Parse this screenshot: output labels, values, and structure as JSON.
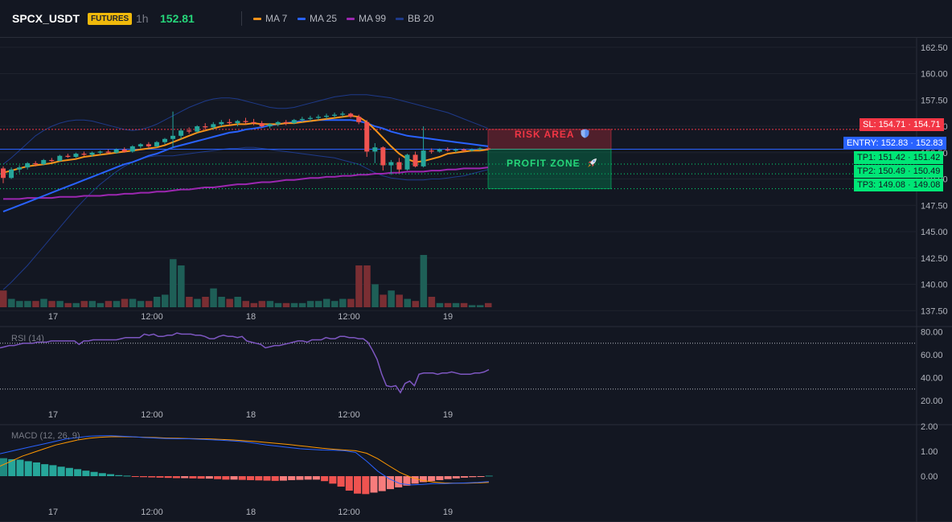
{
  "header": {
    "symbol": "SPCX_USDT",
    "badge": "FUTURES",
    "interval": "1h",
    "price": "152.81",
    "legend": [
      {
        "label": "MA 7",
        "color": "#f7931a"
      },
      {
        "label": "MA 25",
        "color": "#2962ff"
      },
      {
        "label": "MA 99",
        "color": "#9c27b0"
      },
      {
        "label": "BB 20",
        "color": "#1e3a8a"
      }
    ]
  },
  "price_pane": {
    "ticks": [
      "162.50",
      "160.00",
      "157.50",
      "155.00",
      "152.50",
      "150.00",
      "147.50",
      "145.00",
      "142.50",
      "140.00",
      "137.50"
    ],
    "risk_label": "RISK AREA",
    "profit_label": "PROFIT ZONE",
    "risk_icon": "shield-icon",
    "profit_icon": "rocket-icon",
    "tags": {
      "sl": "SL: 154.71 · 154.71",
      "entry": "ENTRY: 152.83 · 152.83",
      "tp1": "TP1: 151.42 · 151.42",
      "tp2": "TP2: 150.49 · 150.49",
      "tp3": "TP3: 149.08 · 149.08"
    },
    "colors": {
      "up": "#26a69a",
      "down": "#ef5350",
      "sl": "#f23645",
      "entry": "#2962ff",
      "tp": "#00e676"
    }
  },
  "time_axis": [
    "17",
    "12:00",
    "18",
    "12:00",
    "19"
  ],
  "rsi_pane": {
    "label": "RSI (14)",
    "ticks": [
      "80.00",
      "60.00",
      "40.00",
      "20.00"
    ],
    "color": "#7e57c2"
  },
  "macd_pane": {
    "label": "MACD (12, 26, 9)",
    "ticks": [
      "2.00",
      "1.00",
      "0.00"
    ]
  },
  "chart_data": {
    "type": "candlestick",
    "price": {
      "ylim": [
        136.4,
        163.6
      ],
      "candles": [
        [
          151.0,
          151.2,
          149.6,
          150.1
        ],
        [
          150.1,
          151.1,
          150.0,
          150.9
        ],
        [
          150.9,
          151.3,
          150.6,
          151.1
        ],
        [
          151.1,
          151.6,
          150.9,
          151.5
        ],
        [
          151.5,
          151.7,
          151.2,
          151.4
        ],
        [
          151.4,
          151.9,
          151.3,
          151.8
        ],
        [
          151.8,
          152.0,
          151.6,
          151.7
        ],
        [
          151.7,
          152.3,
          151.7,
          152.2
        ],
        [
          152.2,
          152.4,
          152.0,
          152.1
        ],
        [
          152.1,
          152.5,
          152.0,
          152.4
        ],
        [
          152.4,
          152.6,
          152.2,
          152.3
        ],
        [
          152.3,
          152.6,
          152.1,
          152.5
        ],
        [
          152.5,
          152.7,
          152.3,
          152.6
        ],
        [
          152.6,
          152.8,
          152.4,
          152.5
        ],
        [
          152.5,
          152.9,
          152.4,
          152.8
        ],
        [
          152.8,
          153.0,
          152.5,
          152.6
        ],
        [
          152.6,
          153.2,
          152.5,
          153.1
        ],
        [
          153.1,
          153.4,
          152.9,
          153.3
        ],
        [
          153.3,
          153.5,
          153.0,
          153.1
        ],
        [
          153.1,
          153.6,
          153.0,
          153.5
        ],
        [
          153.5,
          153.9,
          153.3,
          153.8
        ],
        [
          153.8,
          156.4,
          153.0,
          154.1
        ],
        [
          154.1,
          154.8,
          153.8,
          154.6
        ],
        [
          154.6,
          154.9,
          154.3,
          154.5
        ],
        [
          154.5,
          155.1,
          154.4,
          155.0
        ],
        [
          155.0,
          155.3,
          154.7,
          154.9
        ],
        [
          154.9,
          155.4,
          154.7,
          155.2
        ],
        [
          155.2,
          155.6,
          155.0,
          155.4
        ],
        [
          155.4,
          155.7,
          155.1,
          155.3
        ],
        [
          155.3,
          155.6,
          155.0,
          155.5
        ],
        [
          155.5,
          155.8,
          155.2,
          155.4
        ],
        [
          155.4,
          155.7,
          155.1,
          155.3
        ],
        [
          155.3,
          155.5,
          154.9,
          155.0
        ],
        [
          155.0,
          155.3,
          154.8,
          155.2
        ],
        [
          155.2,
          155.5,
          155.0,
          155.4
        ],
        [
          155.4,
          155.6,
          155.1,
          155.3
        ],
        [
          155.3,
          155.7,
          155.2,
          155.6
        ],
        [
          155.6,
          155.9,
          155.4,
          155.7
        ],
        [
          155.7,
          156.0,
          155.5,
          155.8
        ],
        [
          155.8,
          156.1,
          155.6,
          155.9
        ],
        [
          155.9,
          156.2,
          155.7,
          156.0
        ],
        [
          156.0,
          156.3,
          155.8,
          156.1
        ],
        [
          156.1,
          156.4,
          155.9,
          156.2
        ],
        [
          156.2,
          156.3,
          155.8,
          155.9
        ],
        [
          155.9,
          156.1,
          155.2,
          155.4
        ],
        [
          155.4,
          155.6,
          152.1,
          152.6
        ],
        [
          152.6,
          153.4,
          151.5,
          153.0
        ],
        [
          153.0,
          153.1,
          150.8,
          151.3
        ],
        [
          151.3,
          151.8,
          150.4,
          151.6
        ],
        [
          151.6,
          152.0,
          150.6,
          150.9
        ],
        [
          150.9,
          152.4,
          150.8,
          152.3
        ],
        [
          152.3,
          152.6,
          151.1,
          151.2
        ],
        [
          151.2,
          155.0,
          151.1,
          152.7
        ],
        [
          152.7,
          152.9,
          152.4,
          152.6
        ],
        [
          152.6,
          152.9,
          152.5,
          152.8
        ],
        [
          152.8,
          153.0,
          152.6,
          152.7
        ],
        [
          152.7,
          152.9,
          152.5,
          152.8
        ],
        [
          152.8,
          152.9,
          152.6,
          152.7
        ],
        [
          152.7,
          152.9,
          152.6,
          152.8
        ],
        [
          152.8,
          153.0,
          152.7,
          152.9
        ],
        [
          152.9,
          153.0,
          152.7,
          152.8
        ]
      ],
      "volume": [
        4.0,
        2.0,
        1.5,
        1.5,
        1.5,
        2.0,
        1.5,
        1.5,
        1.0,
        1.0,
        1.5,
        1.5,
        1.0,
        1.5,
        1.5,
        2.0,
        2.0,
        1.5,
        1.5,
        2.5,
        3.0,
        11.5,
        10.0,
        2.5,
        2.0,
        2.5,
        4.5,
        2.5,
        2.0,
        2.5,
        1.5,
        1.0,
        1.5,
        1.5,
        1.0,
        1.0,
        1.0,
        1.0,
        1.5,
        1.5,
        2.0,
        1.5,
        2.0,
        2.0,
        10.0,
        10.0,
        5.5,
        3.0,
        4.0,
        3.0,
        2.0,
        1.5,
        12.5,
        2.5,
        1.0,
        1.0,
        1.0,
        1.0,
        0.5,
        0.5,
        1.0
      ],
      "ma7": [
        150.6,
        150.8,
        151.0,
        151.2,
        151.3,
        151.4,
        151.5,
        151.7,
        151.8,
        151.9,
        152.1,
        152.2,
        152.3,
        152.4,
        152.5,
        152.6,
        152.7,
        152.8,
        152.9,
        153.0,
        153.2,
        153.5,
        153.8,
        154.1,
        154.4,
        154.6,
        154.8,
        155.0,
        155.1,
        155.2,
        155.2,
        155.3,
        155.2,
        155.2,
        155.2,
        155.3,
        155.3,
        155.4,
        155.5,
        155.6,
        155.7,
        155.8,
        155.9,
        156.0,
        155.9,
        155.4,
        154.7,
        153.9,
        153.1,
        152.4,
        151.9,
        151.6,
        151.7,
        151.9,
        152.1,
        152.4,
        152.5,
        152.6,
        152.7,
        152.7,
        152.8
      ],
      "ma25": [
        146.9,
        147.2,
        147.5,
        147.8,
        148.1,
        148.4,
        148.7,
        149.0,
        149.3,
        149.6,
        149.9,
        150.2,
        150.5,
        150.8,
        151.1,
        151.4,
        151.6,
        151.9,
        152.2,
        152.4,
        152.7,
        153.0,
        153.2,
        153.4,
        153.6,
        153.8,
        154.0,
        154.2,
        154.4,
        154.5,
        154.7,
        154.8,
        154.9,
        155.1,
        155.2,
        155.3,
        155.4,
        155.5,
        155.5,
        155.6,
        155.6,
        155.6,
        155.6,
        155.6,
        155.5,
        155.3,
        155.0,
        154.8,
        154.5,
        154.3,
        154.1,
        154.0,
        153.9,
        153.8,
        153.7,
        153.6,
        153.5,
        153.4,
        153.3,
        153.2,
        153.1
      ],
      "ma99": [
        148.1,
        148.1,
        148.1,
        148.2,
        148.2,
        148.2,
        148.2,
        148.3,
        148.3,
        148.3,
        148.4,
        148.4,
        148.4,
        148.5,
        148.5,
        148.6,
        148.6,
        148.7,
        148.7,
        148.8,
        148.8,
        148.9,
        149.0,
        149.0,
        149.1,
        149.2,
        149.2,
        149.3,
        149.4,
        149.5,
        149.5,
        149.6,
        149.7,
        149.7,
        149.8,
        149.9,
        149.9,
        150.0,
        150.1,
        150.1,
        150.2,
        150.2,
        150.3,
        150.3,
        150.4,
        150.4,
        150.5,
        150.5,
        150.6,
        150.6,
        150.7,
        150.7,
        150.7,
        150.8,
        150.8,
        150.9,
        150.9,
        151.0,
        151.0,
        151.0,
        151.1
      ],
      "bb_upper": [
        151.4,
        152.0,
        152.7,
        153.4,
        154.1,
        154.6,
        155.0,
        155.3,
        155.5,
        155.6,
        155.6,
        155.5,
        155.3,
        155.1,
        154.9,
        154.7,
        154.6,
        154.7,
        154.9,
        155.2,
        155.6,
        156.0,
        156.4,
        156.8,
        157.1,
        157.4,
        157.6,
        157.7,
        157.7,
        157.6,
        157.4,
        157.2,
        157.0,
        156.8,
        156.7,
        156.7,
        156.8,
        157.0,
        157.2,
        157.4,
        157.6,
        157.8,
        157.9,
        158.0,
        158.0,
        158.0,
        157.9,
        157.8,
        157.7,
        157.5,
        157.3,
        157.1,
        156.9,
        156.7,
        156.5,
        156.3,
        156.0,
        155.7,
        155.4,
        155.1,
        154.8
      ],
      "bb_lower": [
        139.5,
        140.2,
        141.0,
        141.8,
        142.7,
        143.6,
        144.5,
        145.4,
        146.3,
        147.2,
        148.0,
        148.8,
        149.5,
        150.1,
        150.7,
        151.2,
        151.6,
        151.9,
        152.1,
        152.2,
        152.2,
        152.2,
        152.3,
        152.4,
        152.5,
        152.6,
        152.7,
        152.8,
        152.9,
        152.9,
        153.0,
        153.0,
        152.9,
        152.8,
        152.7,
        152.6,
        152.5,
        152.4,
        152.3,
        152.2,
        152.1,
        152.0,
        151.8,
        151.6,
        151.4,
        151.0,
        150.6,
        150.3,
        150.1,
        150.0,
        149.9,
        149.9,
        149.9,
        150.0,
        150.0,
        150.1,
        150.2,
        150.3,
        150.5,
        150.7,
        150.9
      ],
      "levels": {
        "sl": 154.71,
        "entry": 152.83,
        "tp1": 151.42,
        "tp2": 150.49,
        "tp3": 149.08
      }
    },
    "rsi": {
      "ylim": [
        18,
        86
      ],
      "levels": [
        70,
        30
      ],
      "values": [
        66,
        67,
        68,
        68,
        69,
        70,
        70,
        70,
        71,
        71,
        71,
        72,
        72,
        72,
        72,
        72,
        72,
        69,
        72,
        72,
        73,
        73,
        73,
        73,
        73,
        73,
        74,
        75,
        75,
        75,
        75,
        78,
        77,
        78,
        76,
        76,
        77,
        77,
        79,
        78,
        78,
        78,
        77,
        77,
        76,
        74,
        74,
        76,
        77,
        76,
        76,
        75,
        76,
        72,
        71,
        70,
        69,
        66,
        67,
        68,
        68,
        69,
        70,
        71,
        72,
        72,
        71,
        73,
        73,
        73,
        75,
        74,
        74,
        76,
        76,
        75,
        75,
        74,
        74,
        71,
        64,
        56,
        43,
        33,
        32,
        33,
        27,
        35,
        37,
        33,
        43,
        44,
        44,
        44,
        43,
        44,
        44,
        45,
        44,
        43,
        43,
        43,
        44,
        44,
        45,
        47
      ]
    },
    "macd": {
      "ylim": [
        -1.15,
        2.3
      ],
      "macd": [
        0.9,
        1.0,
        1.1,
        1.2,
        1.3,
        1.4,
        1.5,
        1.55,
        1.6,
        1.62,
        1.62,
        1.6,
        1.58,
        1.55,
        1.53,
        1.51,
        1.5,
        1.5,
        1.48,
        1.46,
        1.44,
        1.41,
        1.38,
        1.32,
        1.25,
        1.2,
        1.15,
        1.1,
        1.07,
        1.05,
        1.04,
        1.02,
        0.95,
        0.6,
        0.2,
        -0.1,
        -0.3,
        -0.35,
        -0.33,
        -0.3,
        -0.3,
        -0.28,
        -0.27,
        -0.25,
        -0.22
      ],
      "signal": [
        0.4,
        0.6,
        0.8,
        0.95,
        1.1,
        1.25,
        1.35,
        1.45,
        1.52,
        1.56,
        1.58,
        1.58,
        1.57,
        1.56,
        1.55,
        1.53,
        1.52,
        1.51,
        1.5,
        1.49,
        1.47,
        1.45,
        1.42,
        1.39,
        1.35,
        1.31,
        1.27,
        1.22,
        1.17,
        1.12,
        1.08,
        1.05,
        1.02,
        0.92,
        0.7,
        0.42,
        0.15,
        -0.05,
        -0.17,
        -0.24,
        -0.27,
        -0.28,
        -0.28,
        -0.27,
        -0.25
      ],
      "histogram": [
        0.72,
        0.68,
        0.66,
        0.6,
        0.55,
        0.48,
        0.44,
        0.38,
        0.33,
        0.28,
        0.22,
        0.17,
        0.12,
        0.08,
        0.04,
        0.02,
        -0.02,
        -0.04,
        -0.05,
        -0.06,
        -0.07,
        -0.08,
        -0.08,
        -0.09,
        -0.1,
        -0.1,
        -0.12,
        -0.14,
        -0.14,
        -0.15,
        -0.16,
        -0.17,
        -0.18,
        -0.19,
        -0.18,
        -0.16,
        -0.15,
        -0.14,
        -0.14,
        -0.2,
        -0.3,
        -0.42,
        -0.58,
        -0.7,
        -0.72,
        -0.66,
        -0.6,
        -0.52,
        -0.45,
        -0.38,
        -0.3,
        -0.24,
        -0.2,
        -0.16,
        -0.12,
        -0.09,
        -0.06,
        -0.04,
        -0.02,
        0.02
      ]
    }
  }
}
